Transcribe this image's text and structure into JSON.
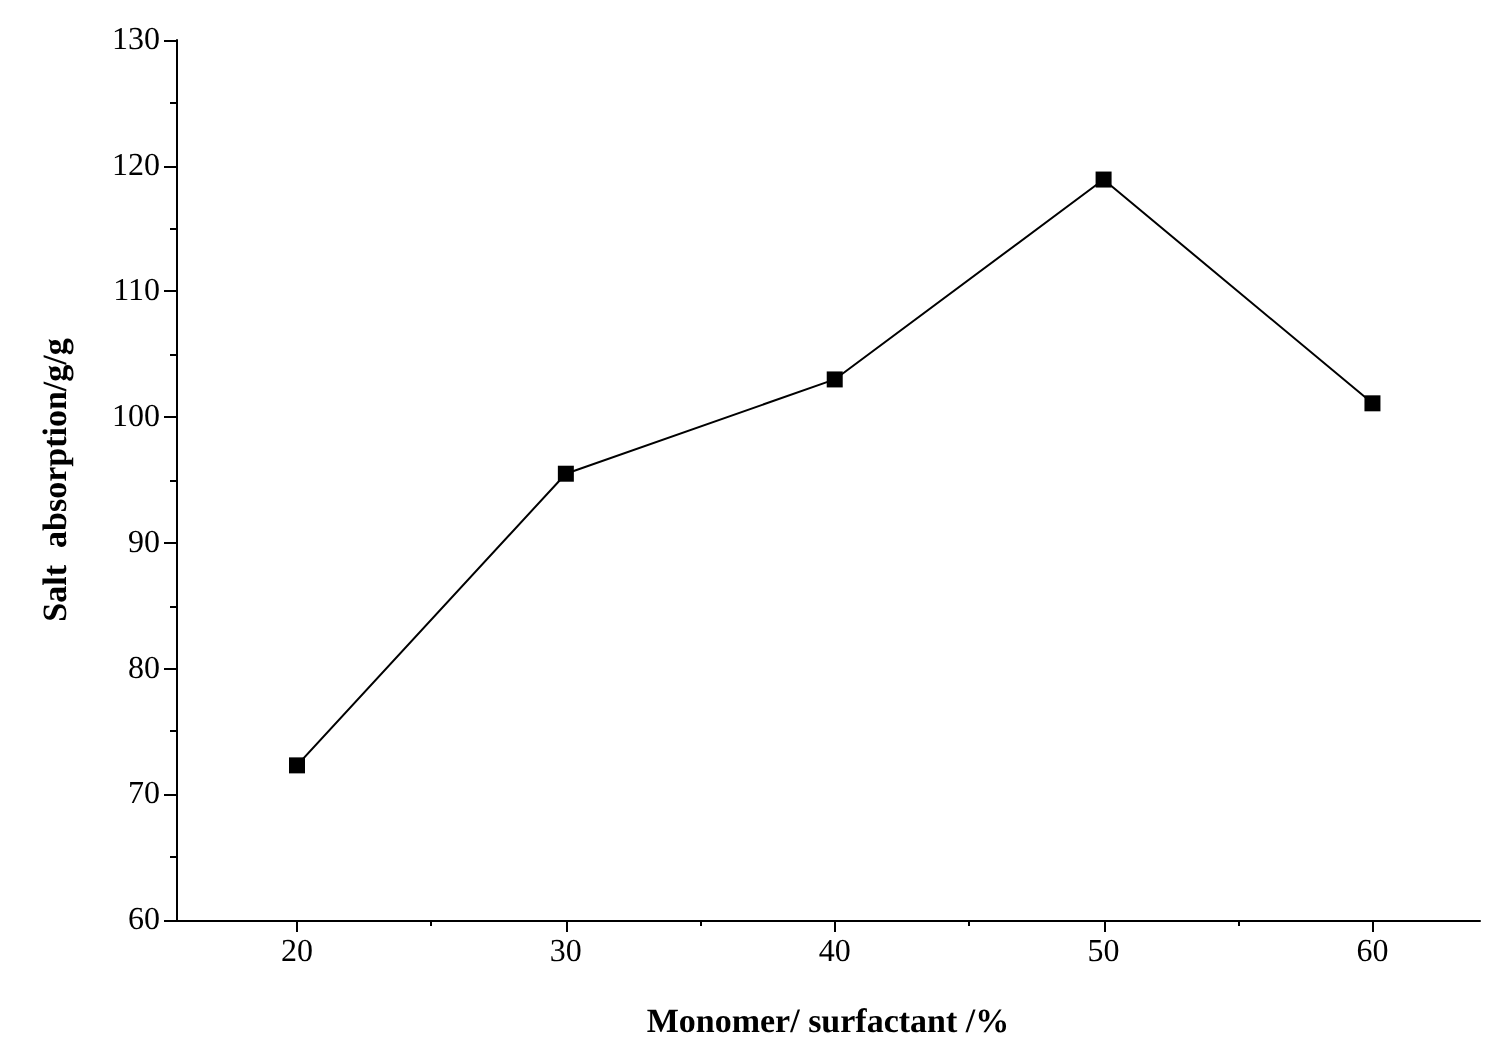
{
  "chart_data": {
    "type": "line",
    "xlabel": "Monomer/ surfactant /%",
    "ylabel": "Salt  absorption/g/g",
    "x": [
      20,
      30,
      40,
      50,
      60
    ],
    "series": [
      {
        "color": "#000000",
        "values": [
          72.3,
          95.5,
          103,
          118.9,
          101.1
        ]
      }
    ],
    "xlim": [
      15.5,
      64
    ],
    "xticks": [
      20,
      30,
      40,
      50,
      60
    ],
    "ylim": [
      60,
      130
    ],
    "yticks": [
      60,
      70,
      80,
      90,
      100,
      110,
      120,
      130
    ],
    "grid": false,
    "marker": "square",
    "line_style": "solid"
  }
}
